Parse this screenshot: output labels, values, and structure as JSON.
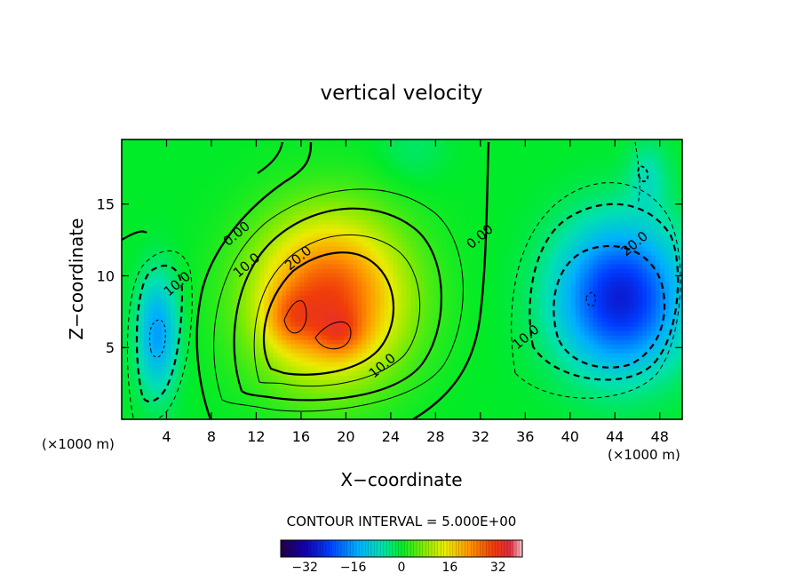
{
  "chart_data": {
    "type": "heatmap",
    "title": "vertical velocity",
    "xlabel": "X−coordinate",
    "ylabel": "Z−coordinate",
    "x_unit_left": "(×1000 m)",
    "x_unit_right": "(×1000 m)",
    "xlim": [
      0,
      50
    ],
    "ylim": [
      0,
      19.5
    ],
    "x_ticks": [
      4,
      8,
      12,
      16,
      20,
      24,
      28,
      32,
      36,
      40,
      44,
      48
    ],
    "y_ticks": [
      5,
      10,
      15
    ],
    "contour_interval_label": "CONTOUR INTERVAL = 5.000E+00",
    "colorbar": {
      "range": [
        -40,
        40
      ],
      "ticks": [
        -32,
        -16,
        0,
        16,
        32
      ],
      "tick_labels": [
        "−32",
        "−16",
        "0",
        "16",
        "32"
      ]
    },
    "contour_labels": [
      {
        "text": "0.00",
        "x": 10.5,
        "y": 12.7
      },
      {
        "text": "10.0",
        "x": 11.4,
        "y": 10.5
      },
      {
        "text": "20.0",
        "x": 16.0,
        "y": 11.0
      },
      {
        "text": "10.0",
        "x": 23.5,
        "y": 3.5
      },
      {
        "text": "0.00",
        "x": 32.2,
        "y": 12.5
      },
      {
        "text": "10.0",
        "x": 5.2,
        "y": 9.2
      },
      {
        "text": "10.0",
        "x": 36.3,
        "y": 5.5
      },
      {
        "text": "20.0",
        "x": 46.0,
        "y": 12.0
      }
    ],
    "features": [
      {
        "kind": "updraft",
        "center_x": 18,
        "center_z": 7.5,
        "peak": 36
      },
      {
        "kind": "downdraft",
        "center_x": 44.5,
        "center_z": 8.5,
        "peak": -30
      },
      {
        "kind": "downdraft",
        "center_x": 3.2,
        "center_z": 6.5,
        "peak": -20
      }
    ]
  }
}
